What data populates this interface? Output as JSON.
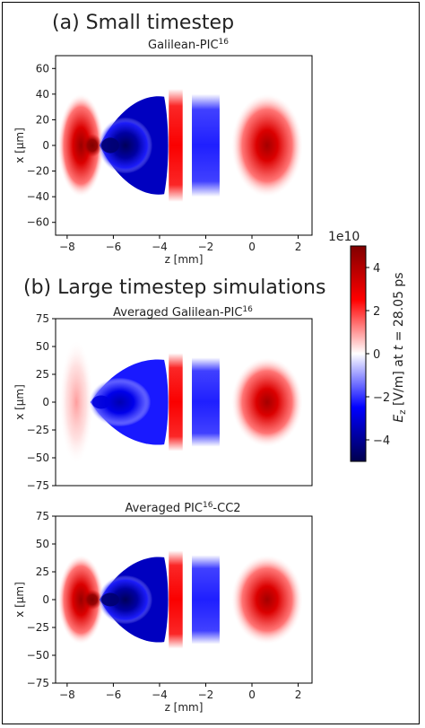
{
  "figure": {
    "section_a": "(a) Small timestep",
    "section_b": "(b) Large timestep simulations"
  },
  "chart_data": [
    {
      "type": "heatmap",
      "title": "Galilean-PIC",
      "title_sup": "16",
      "title_suffix": "",
      "xlabel": "z [mm]",
      "ylabel": "x [μm]",
      "xlim": [
        -8.5,
        2.6
      ],
      "ylim": [
        -70,
        70
      ],
      "xticks": [
        -8,
        -6,
        -4,
        -2,
        0,
        2
      ],
      "yticks": [
        60,
        40,
        20,
        0,
        -20,
        -40,
        -60
      ],
      "field": "Ez",
      "wake_structure": [
        {
          "kind": "red_lobe",
          "z_range": [
            -8.2,
            -6.6
          ],
          "peak": 4.5
        },
        {
          "kind": "blue_cone",
          "z_range": [
            -6.6,
            -3.8
          ],
          "peak": -4.5
        },
        {
          "kind": "red_band",
          "z_range": [
            -3.6,
            -3.0
          ],
          "peak": 2.2
        },
        {
          "kind": "blue_band",
          "z_range": [
            -2.6,
            -1.4
          ],
          "peak": -1.8
        },
        {
          "kind": "red_ellipse",
          "z_range": [
            -0.8,
            2.0
          ],
          "peak": 3.5
        }
      ]
    },
    {
      "type": "heatmap",
      "title": "Averaged Galilean-PIC",
      "title_sup": "16",
      "title_suffix": "",
      "xlabel": "",
      "ylabel": "x [μm]",
      "xlim": [
        -8.5,
        2.6
      ],
      "ylim": [
        -75,
        75
      ],
      "xticks": [],
      "yticks": [
        75,
        50,
        25,
        0,
        -25,
        -50,
        -75
      ],
      "field": "Ez",
      "wake_structure": [
        {
          "kind": "red_lobe",
          "z_range": [
            -8.2,
            -7.0
          ],
          "peak": 0.6
        },
        {
          "kind": "blue_cone",
          "z_range": [
            -7.0,
            -3.8
          ],
          "peak": -3.0
        },
        {
          "kind": "red_band",
          "z_range": [
            -3.6,
            -3.0
          ],
          "peak": 2.2
        },
        {
          "kind": "blue_band",
          "z_range": [
            -2.6,
            -1.4
          ],
          "peak": -1.8
        },
        {
          "kind": "red_ellipse",
          "z_range": [
            -0.8,
            2.0
          ],
          "peak": 3.5
        }
      ]
    },
    {
      "type": "heatmap",
      "title": "Averaged PIC",
      "title_sup": "16",
      "title_suffix": "-CC2",
      "xlabel": "z [mm]",
      "ylabel": "x [μm]",
      "xlim": [
        -8.5,
        2.6
      ],
      "ylim": [
        -75,
        75
      ],
      "xticks": [
        -8,
        -6,
        -4,
        -2,
        0,
        2
      ],
      "yticks": [
        75,
        50,
        25,
        0,
        -25,
        -50,
        -75
      ],
      "field": "Ez",
      "wake_structure": [
        {
          "kind": "red_lobe",
          "z_range": [
            -8.2,
            -6.6
          ],
          "peak": 4.5
        },
        {
          "kind": "blue_cone",
          "z_range": [
            -6.6,
            -3.8
          ],
          "peak": -4.5
        },
        {
          "kind": "red_band",
          "z_range": [
            -3.6,
            -3.0
          ],
          "peak": 2.2
        },
        {
          "kind": "blue_band",
          "z_range": [
            -2.6,
            -1.4
          ],
          "peak": -1.8
        },
        {
          "kind": "red_ellipse",
          "z_range": [
            -0.8,
            2.0
          ],
          "peak": 3.5
        }
      ]
    }
  ],
  "colorbar": {
    "label": "E_z [V/m] at t = 28.05 ps",
    "exponent": "1e10",
    "range": [
      -5,
      5
    ],
    "ticks": [
      4,
      2,
      0,
      -2,
      -4
    ],
    "colormap": "seismic",
    "colors": {
      "high": "#800000",
      "mid": "#ffffff",
      "low": "#00004c"
    }
  }
}
